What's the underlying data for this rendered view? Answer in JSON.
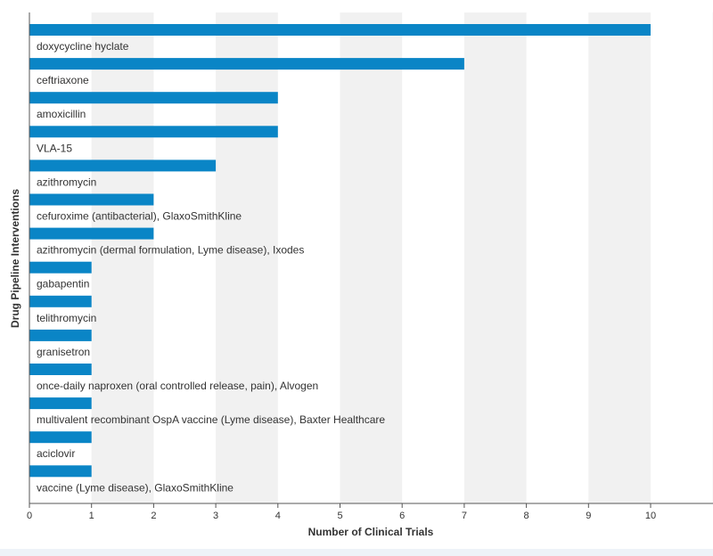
{
  "chart_data": {
    "type": "bar",
    "orientation": "horizontal",
    "ylabel": "Drug Pipeline Interventions",
    "xlabel": "Number of Clinical Trials",
    "xlim": [
      0,
      11
    ],
    "xticks": [
      "0",
      "1",
      "2",
      "3",
      "4",
      "5",
      "6",
      "7",
      "8",
      "9",
      "10"
    ],
    "grid": "alternating vertical bands",
    "bar_color": "#0a85c6",
    "band_color": "#f1f1f1",
    "categories": [
      "doxycycline hyclate",
      "ceftriaxone",
      "amoxicillin",
      "VLA-15",
      "azithromycin",
      "cefuroxime (antibacterial), GlaxoSmithKline",
      "azithromycin (dermal formulation, Lyme disease), Ixodes",
      "gabapentin",
      "telithromycin",
      "granisetron",
      "once-daily naproxen (oral controlled release, pain), Alvogen",
      "multivalent recombinant OspA vaccine (Lyme disease), Baxter Healthcare",
      "aciclovir",
      "vaccine (Lyme disease), GlaxoSmithKline"
    ],
    "values": [
      10,
      7,
      4,
      4,
      3,
      2,
      2,
      1,
      1,
      1,
      1,
      1,
      1,
      1
    ]
  }
}
